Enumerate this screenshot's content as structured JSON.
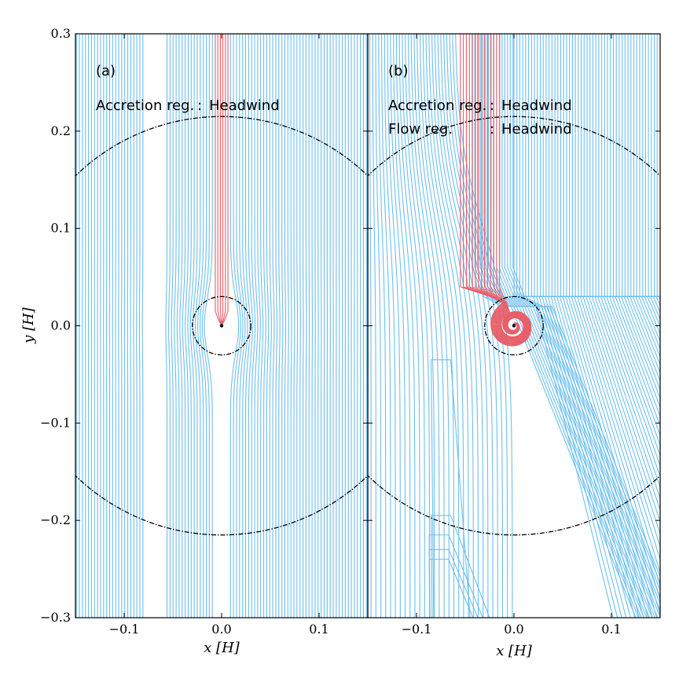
{
  "chart_data": [
    {
      "type": "line",
      "panel_label": "(a)",
      "annotations": [
        {
          "name": "Accretion reg.",
          "value": "Headwind"
        }
      ],
      "xlabel": "x [H]",
      "ylabel": "y [H]",
      "xlim": [
        -0.15,
        0.15
      ],
      "ylim": [
        -0.3,
        0.3
      ],
      "xticks": [
        -0.1,
        0.0,
        0.1
      ],
      "xtick_labels": [
        "−0.1",
        "0.0",
        "0.1"
      ],
      "yticks": [
        -0.3,
        -0.2,
        -0.1,
        0.0,
        0.1,
        0.2,
        0.3
      ],
      "ytick_labels": [
        "−0.3",
        "−0.2",
        "−0.1",
        "0.0",
        "0.1",
        "0.2",
        "0.3"
      ],
      "grid": false,
      "streamline_colors": {
        "flow": "#6cbfef",
        "accreted": "#e85f6a"
      },
      "circles": [
        {
          "center": [
            0.0,
            0.0
          ],
          "radius": 0.03,
          "style": "dash-dot"
        },
        {
          "center": [
            0.0,
            0.0
          ],
          "radius": 0.215,
          "style": "dash-dot"
        }
      ]
    },
    {
      "type": "line",
      "panel_label": "(b)",
      "annotations": [
        {
          "name": "Accretion reg.",
          "value": "Headwind"
        },
        {
          "name": "Flow reg.",
          "value": "Headwind"
        }
      ],
      "xlabel": "x [H]",
      "ylabel": "",
      "xlim": [
        -0.15,
        0.15
      ],
      "ylim": [
        -0.3,
        0.3
      ],
      "xticks": [
        -0.1,
        0.0,
        0.1
      ],
      "xtick_labels": [
        "−0.1",
        "0.0",
        "0.1"
      ],
      "grid": false,
      "streamline_colors": {
        "flow": "#6cbfef",
        "accreted": "#e85f6a"
      },
      "circles": [
        {
          "center": [
            0.0,
            0.0
          ],
          "radius": 0.03,
          "style": "dash-dot"
        },
        {
          "center": [
            0.0,
            0.0
          ],
          "radius": 0.215,
          "style": "dash-dot"
        }
      ]
    }
  ]
}
